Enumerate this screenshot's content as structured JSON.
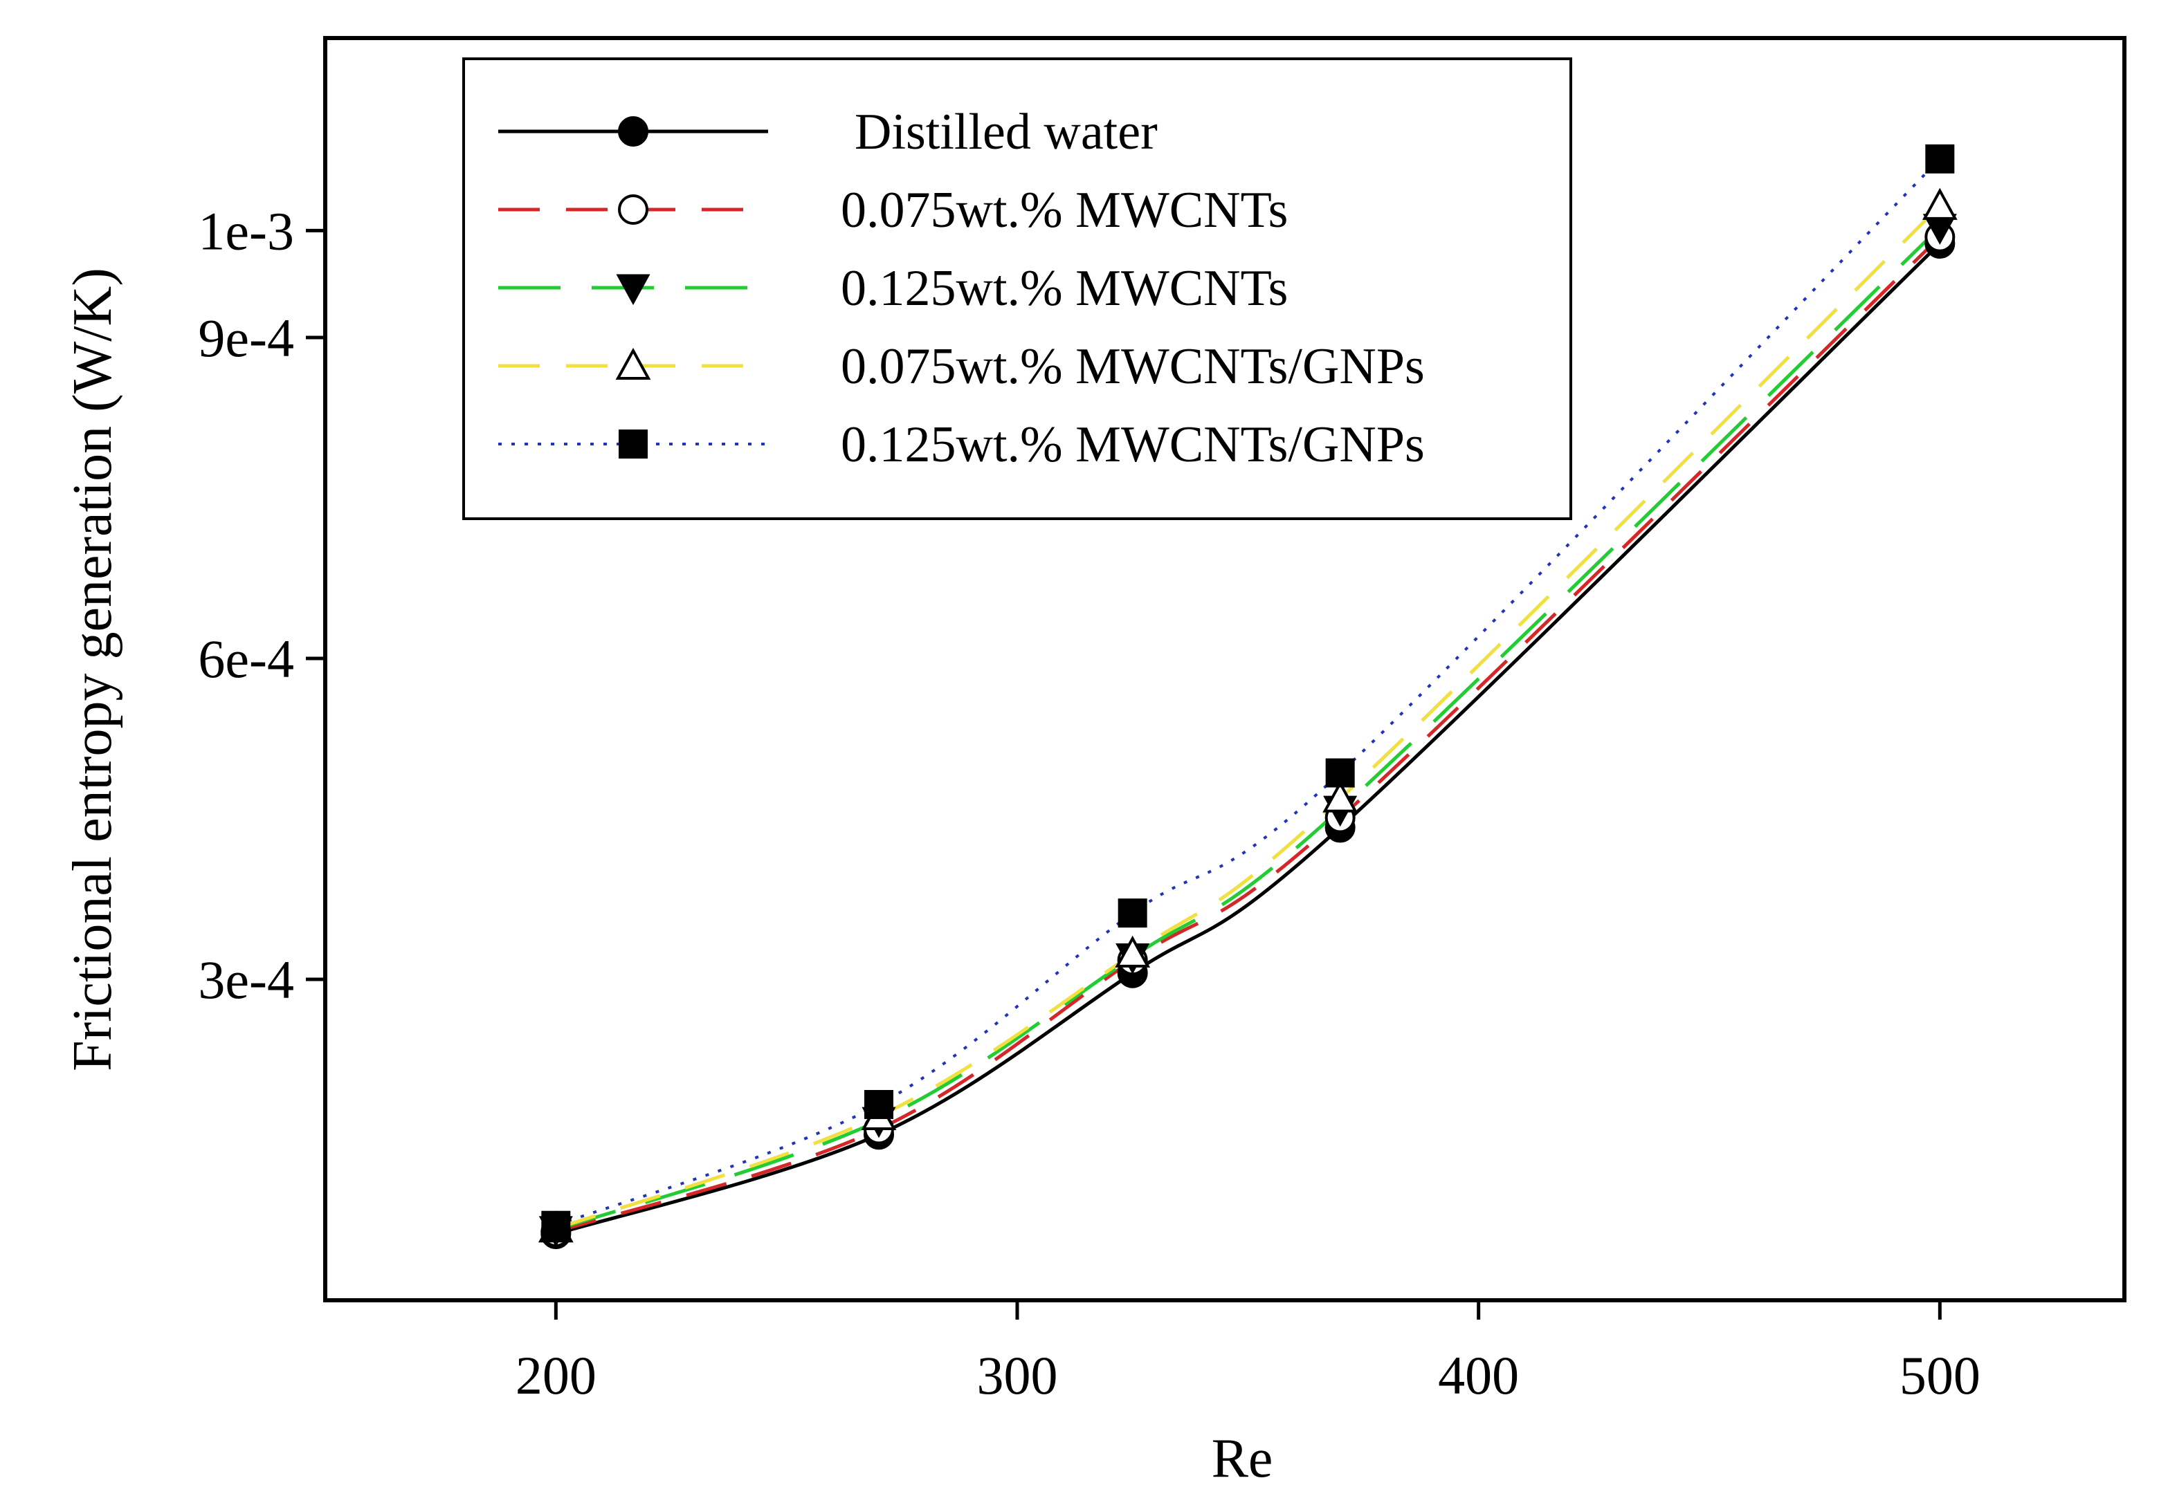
{
  "chart_data": {
    "type": "line",
    "title": "",
    "xlabel": "Re",
    "ylabel": "Frictional entropy generation (W/K)",
    "xlim": [
      150,
      540
    ],
    "ylim": [
      0.0,
      0.00118
    ],
    "x_ticks": [
      200,
      300,
      400,
      500
    ],
    "x_tick_labels": [
      "200",
      "300",
      "400",
      "500"
    ],
    "y_ticks": [
      0.0003,
      0.0006,
      0.0009,
      0.001
    ],
    "y_tick_labels": [
      "3e-4",
      "6e-4",
      "9e-4",
      "1e-3"
    ],
    "grid": false,
    "legend_position": "top-left",
    "x": [
      200,
      270,
      325,
      370,
      500
    ],
    "series": [
      {
        "name": "Distilled water",
        "values": [
          6.2e-05,
          0.000155,
          0.000306,
          0.000442,
          0.000988
        ],
        "color": "#000000",
        "dash": "solid",
        "marker": "filled-circle"
      },
      {
        "name": "0.075wt.% MWCNTs",
        "values": [
          6.4e-05,
          0.00016,
          0.000318,
          0.000451,
          0.000994
        ],
        "color": "#d62728",
        "dash": "dashed",
        "marker": "open-circle"
      },
      {
        "name": "0.125wt.% MWCNTs",
        "values": [
          6.6e-05,
          0.000168,
          0.000321,
          0.000459,
          0.001003
        ],
        "color": "#22cc33",
        "dash": "long-dashed",
        "marker": "filled-triangle-down"
      },
      {
        "name": "0.075wt.% MWCNTs/GNPs",
        "values": [
          6.7e-05,
          0.000172,
          0.000324,
          0.000469,
          0.001023
        ],
        "color": "#f0e040",
        "dash": "dashed",
        "marker": "open-triangle-up"
      },
      {
        "name": "0.125wt.% MWCNTs/GNPs",
        "values": [
          7e-05,
          0.000183,
          0.000362,
          0.000493,
          0.001067
        ],
        "color": "#2233bb",
        "dash": "dotted",
        "marker": "filled-square"
      }
    ]
  }
}
